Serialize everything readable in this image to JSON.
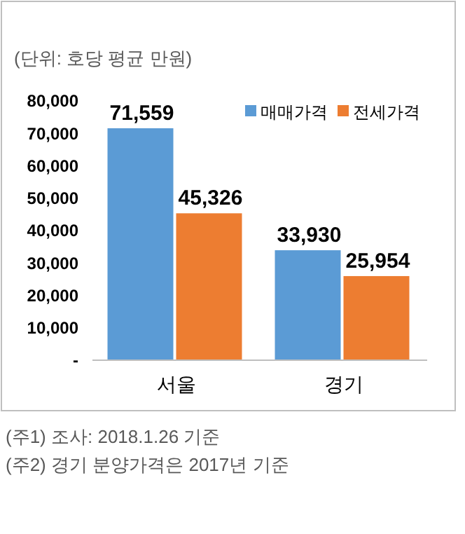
{
  "chart_data": {
    "type": "bar",
    "subtitle": "(단위: 호당 평균 만원)",
    "categories": [
      "서울",
      "경기"
    ],
    "series": [
      {
        "name": "매매가격",
        "color": "#5b9bd5",
        "values": [
          71559,
          33930
        ],
        "value_labels": [
          "71,559",
          "33,930"
        ]
      },
      {
        "name": "전세가격",
        "color": "#ed7d31",
        "values": [
          45326,
          25954
        ],
        "value_labels": [
          "45,326",
          "25,954"
        ]
      }
    ],
    "ylim": [
      0,
      80000
    ],
    "yticks": [
      {
        "value": 0,
        "label": "-"
      },
      {
        "value": 10000,
        "label": "10,000"
      },
      {
        "value": 20000,
        "label": "20,000"
      },
      {
        "value": 30000,
        "label": "30,000"
      },
      {
        "value": 40000,
        "label": "40,000"
      },
      {
        "value": 50000,
        "label": "50,000"
      },
      {
        "value": 60000,
        "label": "60,000"
      },
      {
        "value": 70000,
        "label": "70,000"
      },
      {
        "value": 80000,
        "label": "80,000"
      }
    ],
    "legend": "top right",
    "grid": false,
    "annotations": [
      "(주1) 조사: 2018.1.26 기준",
      "(주2) 경기 분양가격은 2017년 기준"
    ]
  }
}
